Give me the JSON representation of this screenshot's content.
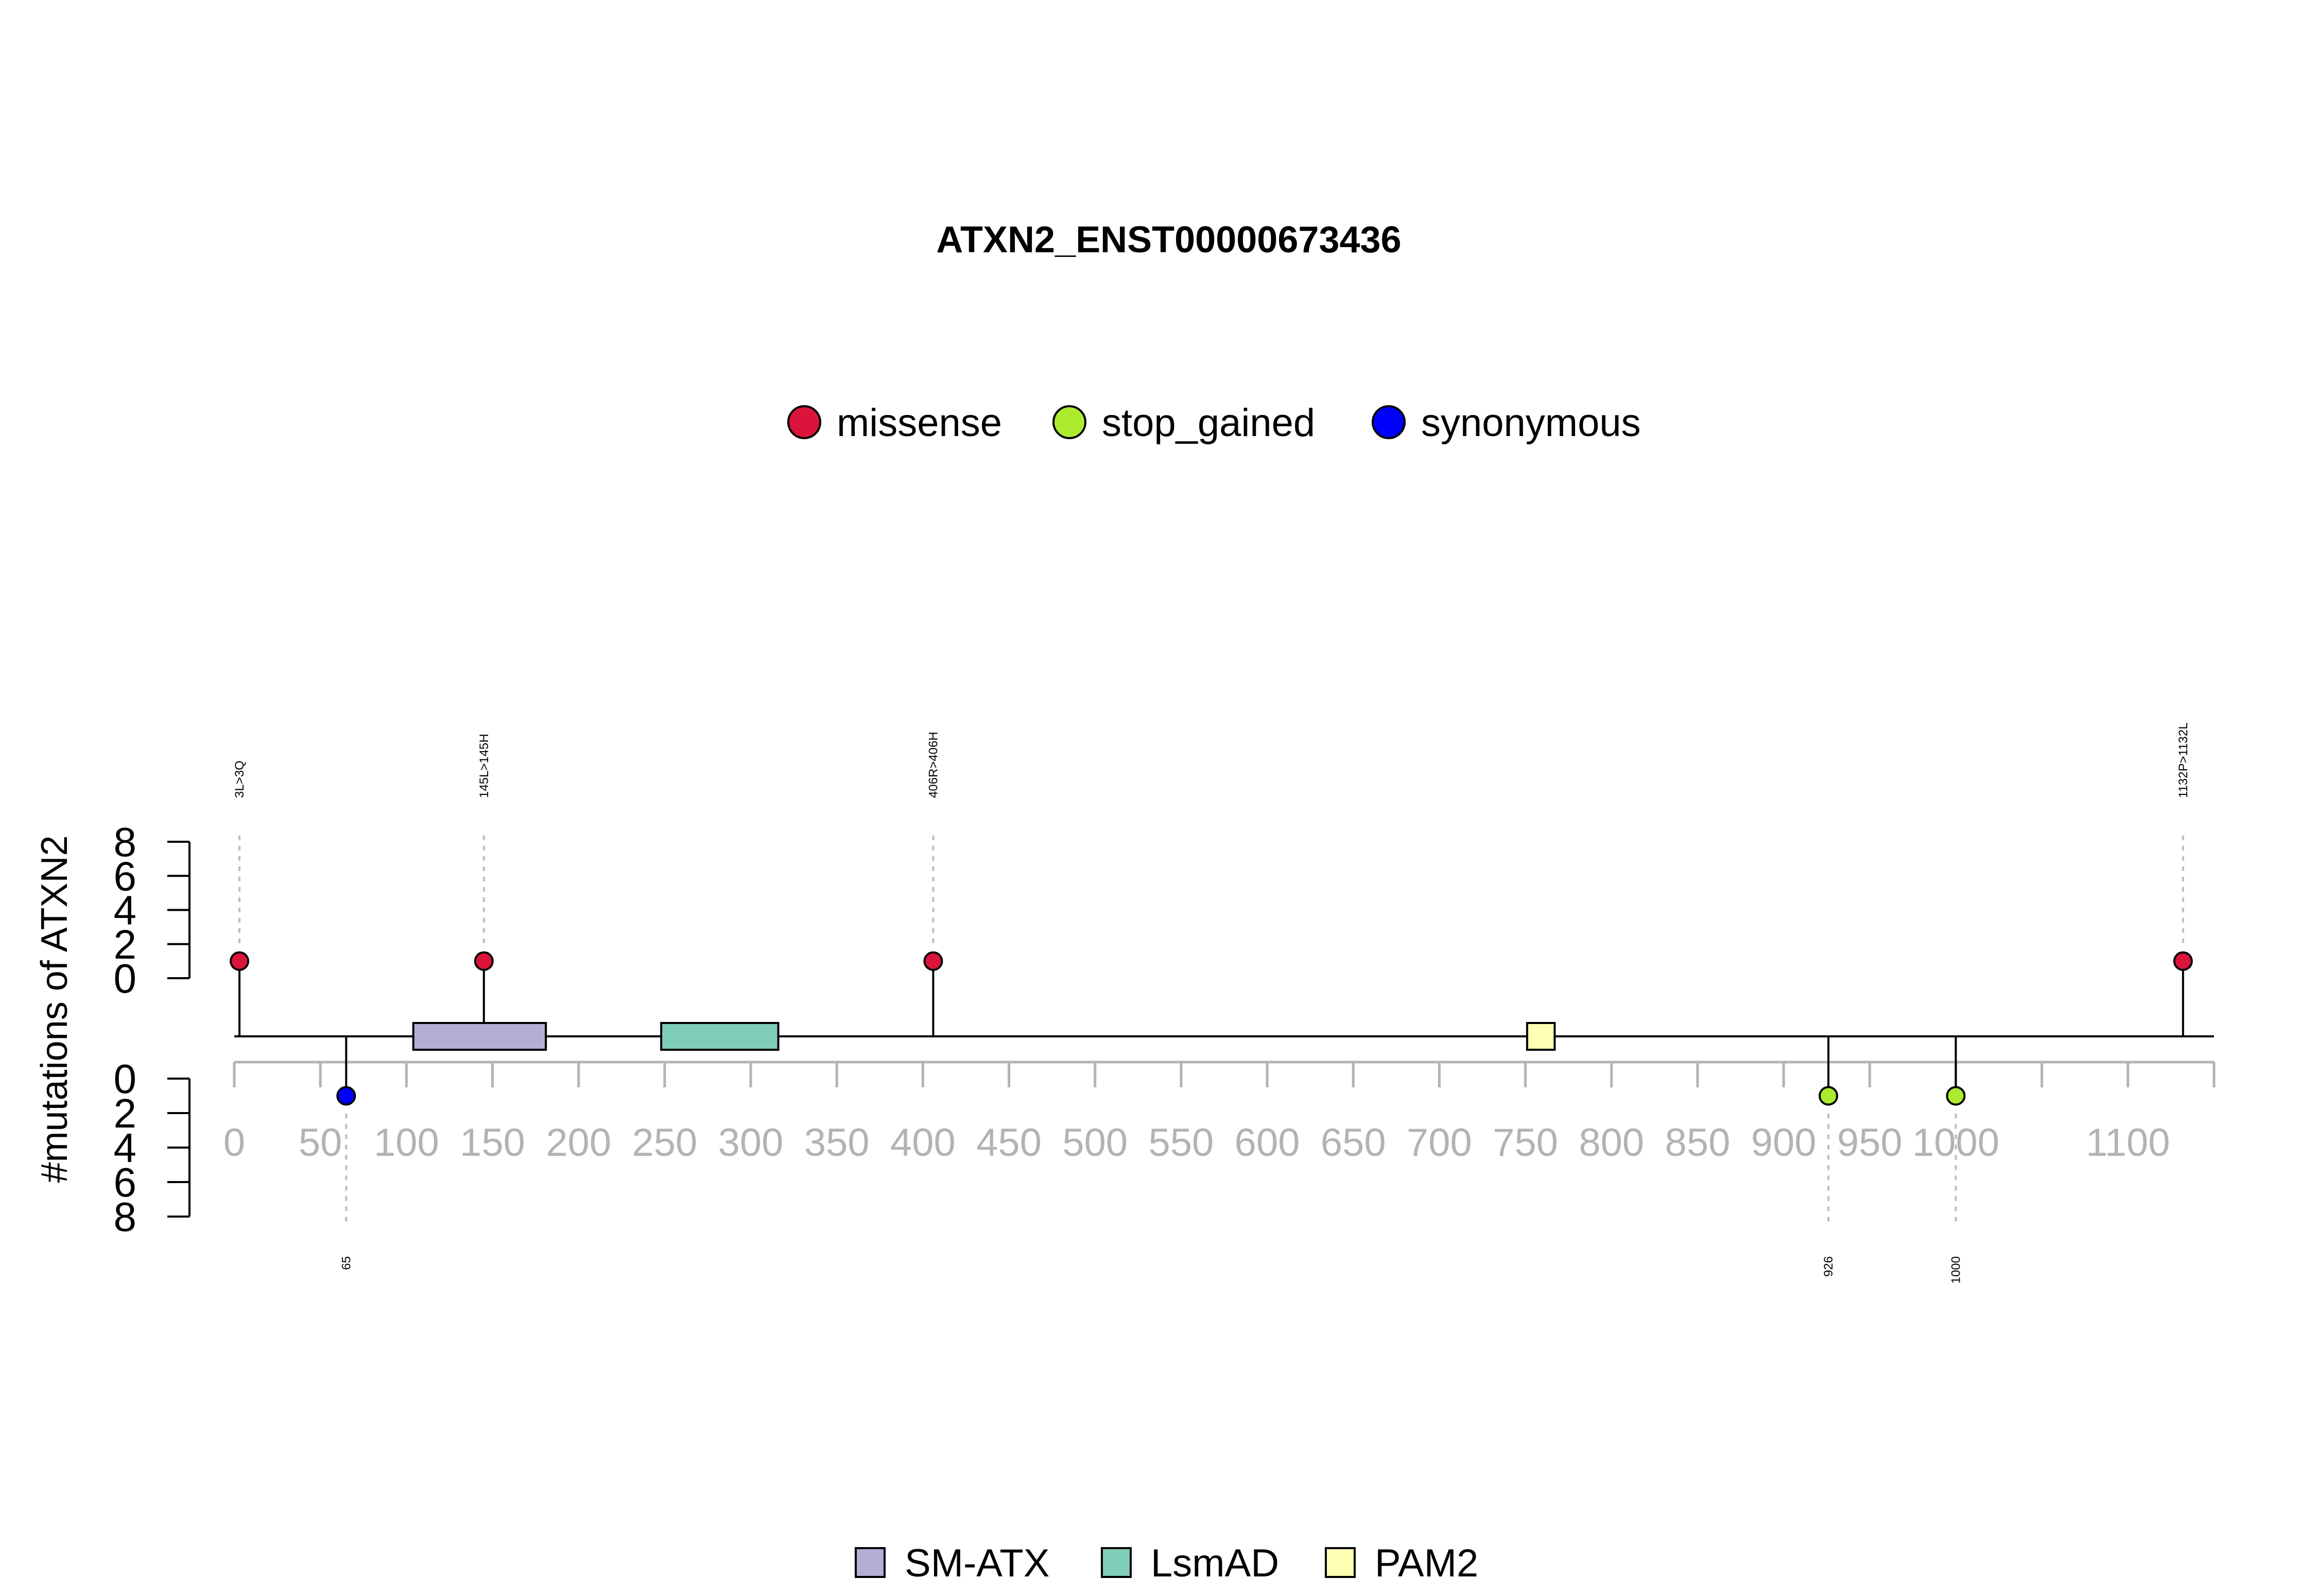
{
  "chart_data": {
    "type": "lollipop",
    "title": "ATXN2_ENST00000673436",
    "ylabel": "#mutations of ATXN2",
    "protein_range": [
      0,
      1150
    ],
    "x_ticks": [
      0,
      50,
      100,
      150,
      200,
      250,
      300,
      350,
      400,
      450,
      500,
      550,
      600,
      650,
      700,
      750,
      800,
      850,
      900,
      950,
      1000,
      1050,
      1100,
      1150
    ],
    "x_tick_labels": [
      "0",
      "50",
      "100",
      "150",
      "200",
      "250",
      "300",
      "350",
      "400",
      "450",
      "500",
      "550",
      "600",
      "650",
      "700",
      "750",
      "800",
      "850",
      "900",
      "950",
      "1000",
      "",
      "1100",
      ""
    ],
    "y_ticks_top": [
      "0",
      "2",
      "4",
      "6",
      "8"
    ],
    "y_ticks_bottom": [
      "0",
      "2",
      "4",
      "6",
      "8"
    ],
    "ylim": [
      0,
      8
    ],
    "mutation_legend": [
      {
        "name": "missense",
        "color": "#DC143C"
      },
      {
        "name": "stop_gained",
        "color": "#ADEB2F"
      },
      {
        "name": "synonymous",
        "color": "#0000FF"
      }
    ],
    "domain_legend": [
      {
        "name": "SM-ATX",
        "color": "#B3AED6"
      },
      {
        "name": "LsmAD",
        "color": "#80CDBA"
      },
      {
        "name": "PAM2",
        "color": "#FFFFB3"
      }
    ],
    "domains": [
      {
        "name": "SM-ATX",
        "start": 104,
        "end": 181,
        "color": "#B3AED6"
      },
      {
        "name": "LsmAD",
        "start": 248,
        "end": 316,
        "color": "#80CDBA"
      },
      {
        "name": "PAM2",
        "start": 751,
        "end": 767,
        "color": "#FFFFB3"
      }
    ],
    "mutations": [
      {
        "position": 3,
        "label": "3L>3Q",
        "type": "missense",
        "count": 1,
        "side": "top"
      },
      {
        "position": 145,
        "label": "145L>145H",
        "type": "missense",
        "count": 1,
        "side": "top"
      },
      {
        "position": 406,
        "label": "406R>406H",
        "type": "missense",
        "count": 1,
        "side": "top"
      },
      {
        "position": 1132,
        "label": "1132P>1132L",
        "type": "missense",
        "count": 1,
        "side": "top"
      },
      {
        "position": 65,
        "label": "65",
        "type": "synonymous",
        "count": 1,
        "side": "bottom"
      },
      {
        "position": 926,
        "label": "926",
        "type": "stop_gained",
        "count": 1,
        "side": "bottom"
      },
      {
        "position": 1000,
        "label": "1000",
        "type": "stop_gained",
        "count": 1,
        "side": "bottom"
      }
    ]
  }
}
